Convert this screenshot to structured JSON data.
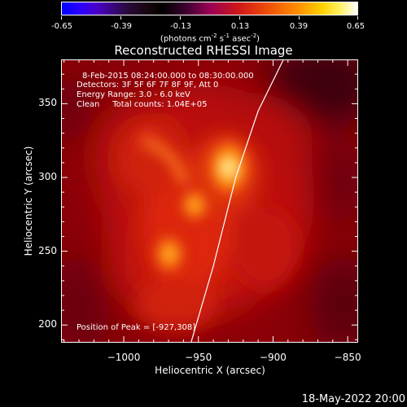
{
  "colorbar": {
    "ticks": [
      "-0.65",
      "-0.39",
      "-0.13",
      "0.13",
      "0.39",
      "0.65"
    ],
    "units_text": "(photons cm",
    "units_exp1": "-2",
    "units_mid": " s",
    "units_exp2": "-1",
    "units_mid2": " asec",
    "units_exp3": "-2",
    "units_end": ")"
  },
  "chart_data": {
    "type": "heatmap",
    "title": "Reconstructed RHESSI Image",
    "xlabel": "Heliocentric X (arcsec)",
    "ylabel": "Heliocentric Y (arcsec)",
    "xlim": [
      -1042,
      -843
    ],
    "ylim": [
      188,
      380
    ],
    "x_ticks": [
      -1000,
      -950,
      -900,
      -850
    ],
    "x_tick_labels": [
      "−1000",
      "−950",
      "−900",
      "−850"
    ],
    "y_ticks": [
      200,
      250,
      300,
      350
    ],
    "y_tick_labels": [
      "200",
      "250",
      "300",
      "350"
    ],
    "colorbar_range": [
      -0.65,
      0.65
    ],
    "colormap": "red-temperature",
    "sources": [
      {
        "x": -927,
        "y": 308,
        "intensity": 0.65
      },
      {
        "x": -958,
        "y": 283,
        "intensity": 0.5
      },
      {
        "x": -973,
        "y": 256,
        "intensity": 0.52
      },
      {
        "x": -986,
        "y": 325,
        "intensity": 0.3
      }
    ],
    "limb_curve": [
      {
        "x": -955,
        "y": 188
      },
      {
        "x": -940,
        "y": 240
      },
      {
        "x": -925,
        "y": 300
      },
      {
        "x": -910,
        "y": 345
      },
      {
        "x": -893,
        "y": 380
      }
    ]
  },
  "info": {
    "line1": "8-Feb-2015 08:24:00.000 to 08:30:00.000",
    "line2": "Detectors: 3F 5F 6F 7F 8F 9F, Att 0",
    "line3": "Energy Range: 3.0 - 6.0 keV",
    "line4": "Clean     Total counts: 1.04E+05",
    "peak": "Position of Peak = [-927,308]"
  },
  "timestamp": "18-May-2022 20:00"
}
